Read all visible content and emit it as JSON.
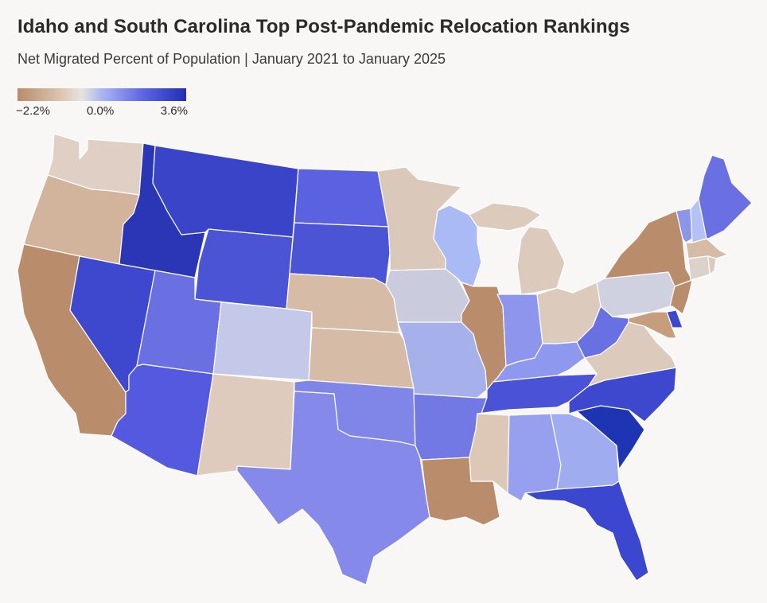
{
  "title": "Idaho and South Carolina Top Post-Pandemic Relocation Rankings",
  "subtitle": "Net Migrated Percent of Population | January 2021 to January 2025",
  "legend": {
    "min_label": "−2.2%",
    "mid_label": "0.0%",
    "max_label": "3.6%",
    "min_value": -2.2,
    "mid_value": 0.0,
    "max_value": 3.6,
    "colors": {
      "negative": "#b68d6a",
      "neutral": "#e8e2e0",
      "positive": "#1f2fb5"
    }
  },
  "states": [
    {
      "name": "Washington",
      "abbr": "WA",
      "color": "#dfcfc5"
    },
    {
      "name": "Oregon",
      "abbr": "OR",
      "color": "#d2b49c"
    },
    {
      "name": "California",
      "abbr": "CA",
      "color": "#b98d6b"
    },
    {
      "name": "Idaho",
      "abbr": "ID",
      "color": "#2a36b6"
    },
    {
      "name": "Nevada",
      "abbr": "NV",
      "color": "#3e48cf"
    },
    {
      "name": "Montana",
      "abbr": "MT",
      "color": "#3a44c8"
    },
    {
      "name": "Wyoming",
      "abbr": "WY",
      "color": "#4c54d6"
    },
    {
      "name": "Utah",
      "abbr": "UT",
      "color": "#6a70e2"
    },
    {
      "name": "Arizona",
      "abbr": "AZ",
      "color": "#5559e0"
    },
    {
      "name": "Colorado",
      "abbr": "CO",
      "color": "#c4c9ea"
    },
    {
      "name": "New Mexico",
      "abbr": "NM",
      "color": "#decbbd"
    },
    {
      "name": "North Dakota",
      "abbr": "ND",
      "color": "#5a62e2"
    },
    {
      "name": "South Dakota",
      "abbr": "SD",
      "color": "#4c54d6"
    },
    {
      "name": "Nebraska",
      "abbr": "NE",
      "color": "#d6bca6"
    },
    {
      "name": "Kansas",
      "abbr": "KS",
      "color": "#d6bca6"
    },
    {
      "name": "Oklahoma",
      "abbr": "OK",
      "color": "#7f86e8"
    },
    {
      "name": "Texas",
      "abbr": "TX",
      "color": "#858aea"
    },
    {
      "name": "Minnesota",
      "abbr": "MN",
      "color": "#dac8bb"
    },
    {
      "name": "Iowa",
      "abbr": "IA",
      "color": "#cacbdc"
    },
    {
      "name": "Missouri",
      "abbr": "MO",
      "color": "#a6b1ec"
    },
    {
      "name": "Arkansas",
      "abbr": "AR",
      "color": "#7278e4"
    },
    {
      "name": "Louisiana",
      "abbr": "LA",
      "color": "#b98d6b"
    },
    {
      "name": "Wisconsin",
      "abbr": "WI",
      "color": "#aabaf4"
    },
    {
      "name": "Illinois",
      "abbr": "IL",
      "color": "#b98d6b"
    },
    {
      "name": "Michigan",
      "abbr": "MI",
      "color": "#dccabd"
    },
    {
      "name": "Indiana",
      "abbr": "IN",
      "color": "#8d95ec"
    },
    {
      "name": "Ohio",
      "abbr": "OH",
      "color": "#dccabd"
    },
    {
      "name": "Kentucky",
      "abbr": "KY",
      "color": "#8e98ee"
    },
    {
      "name": "Tennessee",
      "abbr": "TN",
      "color": "#4a52d6"
    },
    {
      "name": "Mississippi",
      "abbr": "MS",
      "color": "#ddc8b7"
    },
    {
      "name": "Alabama",
      "abbr": "AL",
      "color": "#97a0ef"
    },
    {
      "name": "Georgia",
      "abbr": "GA",
      "color": "#a0acf0"
    },
    {
      "name": "Florida",
      "abbr": "FL",
      "color": "#3c47cf"
    },
    {
      "name": "South Carolina",
      "abbr": "SC",
      "color": "#1d35b2"
    },
    {
      "name": "North Carolina",
      "abbr": "NC",
      "color": "#3e48cf"
    },
    {
      "name": "Virginia",
      "abbr": "VA",
      "color": "#dccabd"
    },
    {
      "name": "West Virginia",
      "abbr": "WV",
      "color": "#6870e2"
    },
    {
      "name": "Pennsylvania",
      "abbr": "PA",
      "color": "#cfd0e0"
    },
    {
      "name": "New York",
      "abbr": "NY",
      "color": "#b98d6b"
    },
    {
      "name": "Vermont",
      "abbr": "VT",
      "color": "#8c95ea"
    },
    {
      "name": "New Hampshire",
      "abbr": "NH",
      "color": "#b2c2f4"
    },
    {
      "name": "Maine",
      "abbr": "ME",
      "color": "#6a70e2"
    },
    {
      "name": "Massachusetts",
      "abbr": "MA",
      "color": "#d6bca6"
    },
    {
      "name": "Rhode Island",
      "abbr": "RI",
      "color": "#dccabd"
    },
    {
      "name": "Connecticut",
      "abbr": "CT",
      "color": "#dcd2cc"
    },
    {
      "name": "New Jersey",
      "abbr": "NJ",
      "color": "#b98d6b"
    },
    {
      "name": "Delaware",
      "abbr": "DE",
      "color": "#3e48cf"
    },
    {
      "name": "Maryland",
      "abbr": "MD",
      "color": "#c69e7e"
    }
  ]
}
